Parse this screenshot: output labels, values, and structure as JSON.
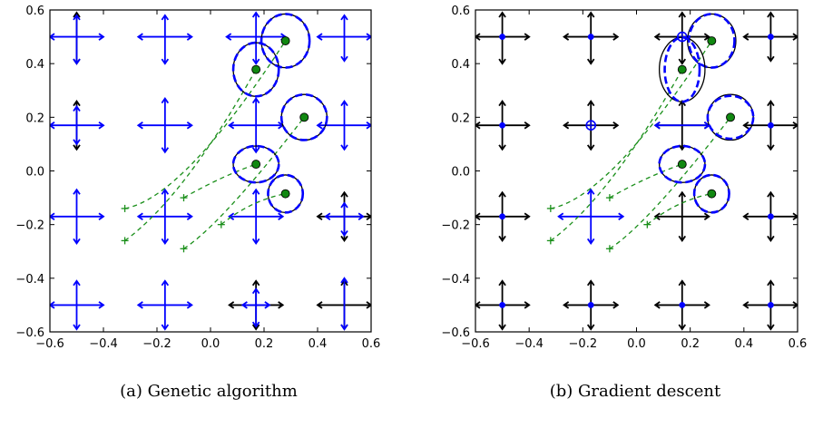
{
  "colors": {
    "blue": "#0000ff",
    "black": "#000000",
    "green": "#118811",
    "green_dash": "#1a8f1a",
    "frame": "#000000"
  },
  "chart_data": [
    {
      "type": "scatter",
      "caption": "(a) Genetic algorithm",
      "xlim": [
        -0.6,
        0.6
      ],
      "ylim": [
        -0.6,
        0.6
      ],
      "xticks": [
        -0.6,
        -0.4,
        -0.2,
        0.0,
        0.2,
        0.4,
        0.6
      ],
      "yticks": [
        -0.6,
        -0.4,
        -0.2,
        0.0,
        0.2,
        0.4,
        0.6
      ],
      "xtick_labels": [
        "−0.6",
        "−0.4",
        "−0.2",
        "0.0",
        "0.2",
        "0.4",
        "0.6"
      ],
      "ytick_labels": [
        "−0.6",
        "−0.4",
        "−0.2",
        "0.0",
        "0.2",
        "0.4",
        "0.6"
      ],
      "grid": false,
      "crosses": [
        {
          "x": -0.5,
          "y": 0.5,
          "color": "blue",
          "h": 0.1,
          "up": 0.08,
          "down": 0.1,
          "dot": false
        },
        {
          "x": -0.5,
          "y": 0.5,
          "color": "black",
          "h": 0.0,
          "up": 0.09,
          "down": 0.1,
          "dot": false,
          "behind": true
        },
        {
          "x": -0.17,
          "y": 0.5,
          "color": "blue",
          "h": 0.1,
          "up": 0.08,
          "down": 0.1,
          "dot": false
        },
        {
          "x": 0.17,
          "y": 0.5,
          "color": "blue",
          "h": 0.11,
          "up": 0.09,
          "down": 0.1,
          "dot": false
        },
        {
          "x": 0.5,
          "y": 0.5,
          "color": "blue",
          "h": 0.1,
          "up": 0.08,
          "down": 0.09,
          "dot": false
        },
        {
          "x": -0.5,
          "y": 0.17,
          "color": "blue",
          "h": 0.1,
          "up": 0.07,
          "down": 0.07,
          "dot": false
        },
        {
          "x": -0.5,
          "y": 0.17,
          "color": "black",
          "h": 0.0,
          "up": 0.09,
          "down": 0.09,
          "dot": false,
          "behind": true
        },
        {
          "x": -0.17,
          "y": 0.17,
          "color": "blue",
          "h": 0.1,
          "up": 0.1,
          "down": 0.1,
          "dot": false
        },
        {
          "x": 0.17,
          "y": 0.17,
          "color": "blue",
          "h": 0.1,
          "up": 0.1,
          "down": 0.1,
          "dot": false
        },
        {
          "x": 0.5,
          "y": 0.17,
          "color": "blue",
          "h": 0.1,
          "up": 0.09,
          "down": 0.09,
          "dot": false
        },
        {
          "x": -0.5,
          "y": -0.17,
          "color": "blue",
          "h": 0.1,
          "up": 0.1,
          "down": 0.1,
          "dot": false
        },
        {
          "x": -0.17,
          "y": -0.17,
          "color": "blue",
          "h": 0.1,
          "up": 0.1,
          "down": 0.1,
          "dot": false
        },
        {
          "x": 0.17,
          "y": -0.17,
          "color": "blue",
          "h": 0.1,
          "up": 0.1,
          "down": 0.1,
          "dot": false
        },
        {
          "x": 0.5,
          "y": -0.17,
          "color": "black",
          "h": 0.1,
          "up": 0.09,
          "down": 0.09,
          "dot": false
        },
        {
          "x": 0.5,
          "y": -0.17,
          "color": "blue",
          "h": 0.07,
          "up": 0.05,
          "down": 0.07,
          "dot": false
        },
        {
          "x": -0.5,
          "y": -0.5,
          "color": "blue",
          "h": 0.1,
          "up": 0.09,
          "down": 0.09,
          "dot": false
        },
        {
          "x": -0.17,
          "y": -0.5,
          "color": "blue",
          "h": 0.1,
          "up": 0.09,
          "down": 0.09,
          "dot": false
        },
        {
          "x": 0.17,
          "y": -0.5,
          "color": "black",
          "h": 0.1,
          "up": 0.09,
          "down": 0.09,
          "dot": false
        },
        {
          "x": 0.17,
          "y": -0.5,
          "color": "blue",
          "h": 0.05,
          "up": 0.06,
          "down": 0.08,
          "dot": false
        },
        {
          "x": 0.5,
          "y": -0.5,
          "color": "black",
          "h": 0.1,
          "up": 0.09,
          "down": 0.09,
          "dot": false
        },
        {
          "x": 0.5,
          "y": -0.5,
          "color": "blue",
          "h": 0.0,
          "up": 0.1,
          "down": 0.09,
          "dot": false
        }
      ],
      "ellipses": [
        {
          "x": 0.28,
          "y": 0.485,
          "rx": 0.09,
          "ry": 0.1,
          "blue_rx": 0.09,
          "blue_ry": 0.1
        },
        {
          "x": 0.17,
          "y": 0.378,
          "rx": 0.085,
          "ry": 0.1,
          "blue_rx": 0.085,
          "blue_ry": 0.1
        },
        {
          "x": 0.35,
          "y": 0.2,
          "rx": 0.085,
          "ry": 0.085,
          "blue_rx": 0.085,
          "blue_ry": 0.085
        },
        {
          "x": 0.17,
          "y": 0.025,
          "rx": 0.085,
          "ry": 0.068,
          "blue_rx": 0.085,
          "blue_ry": 0.068
        },
        {
          "x": 0.28,
          "y": -0.085,
          "rx": 0.065,
          "ry": 0.07,
          "blue_rx": 0.065,
          "blue_ry": 0.07
        }
      ],
      "trajectories": [
        {
          "start": [
            -0.32,
            -0.14
          ],
          "mid": [
            -0.1,
            -0.1
          ],
          "end": [
            0.28,
            0.485
          ]
        },
        {
          "start": [
            -0.32,
            -0.26
          ],
          "mid": [
            -0.1,
            -0.1
          ],
          "end": [
            0.17,
            0.378
          ]
        },
        {
          "start": [
            -0.1,
            -0.29
          ],
          "mid": [
            0.04,
            -0.2
          ],
          "end": [
            0.35,
            0.2
          ]
        },
        {
          "start": [
            -0.1,
            -0.1
          ],
          "mid": [
            0.04,
            -0.02
          ],
          "end": [
            0.17,
            0.025
          ]
        },
        {
          "start": [
            0.04,
            -0.2
          ],
          "mid": [
            0.15,
            -0.11
          ],
          "end": [
            0.28,
            -0.085
          ]
        }
      ]
    },
    {
      "type": "scatter",
      "caption": "(b) Gradient descent",
      "xlim": [
        -0.6,
        0.6
      ],
      "ylim": [
        -0.6,
        0.6
      ],
      "xticks": [
        -0.6,
        -0.4,
        -0.2,
        0.0,
        0.2,
        0.4,
        0.6
      ],
      "yticks": [
        -0.6,
        -0.4,
        -0.2,
        0.0,
        0.2,
        0.4,
        0.6
      ],
      "xtick_labels": [
        "−0.6",
        "−0.4",
        "−0.2",
        "0.0",
        "0.2",
        "0.4",
        "0.6"
      ],
      "ytick_labels": [
        "−0.6",
        "−0.4",
        "−0.2",
        "0.0",
        "0.2",
        "0.4",
        "0.6"
      ],
      "grid": false,
      "crosses": [
        {
          "x": -0.5,
          "y": 0.5,
          "color": "black",
          "h": 0.1,
          "up": 0.09,
          "down": 0.1,
          "dot": true
        },
        {
          "x": -0.17,
          "y": 0.5,
          "color": "black",
          "h": 0.1,
          "up": 0.09,
          "down": 0.1,
          "dot": true
        },
        {
          "x": 0.17,
          "y": 0.5,
          "color": "black",
          "h": 0.1,
          "up": 0.09,
          "down": 0.1,
          "dot": false
        },
        {
          "x": 0.17,
          "y": 0.5,
          "color": "blue",
          "h": 0.0,
          "up": 0.0,
          "down": 0.0,
          "dot": true,
          "hollow": true
        },
        {
          "x": 0.5,
          "y": 0.5,
          "color": "black",
          "h": 0.1,
          "up": 0.09,
          "down": 0.09,
          "dot": true
        },
        {
          "x": -0.5,
          "y": 0.17,
          "color": "black",
          "h": 0.1,
          "up": 0.09,
          "down": 0.09,
          "dot": true
        },
        {
          "x": -0.17,
          "y": 0.17,
          "color": "black",
          "h": 0.1,
          "up": 0.09,
          "down": 0.09,
          "dot": false
        },
        {
          "x": -0.17,
          "y": 0.17,
          "color": "blue",
          "h": 0.0,
          "up": 0.0,
          "down": 0.0,
          "dot": true,
          "hollow": true
        },
        {
          "x": 0.17,
          "y": 0.17,
          "color": "black",
          "h": 0.1,
          "up": 0.09,
          "down": 0.09,
          "dot": false
        },
        {
          "x": 0.17,
          "y": 0.17,
          "color": "blue",
          "h": 0.1,
          "up": 0.0,
          "down": 0.0,
          "dot": false
        },
        {
          "x": 0.5,
          "y": 0.17,
          "color": "black",
          "h": 0.1,
          "up": 0.09,
          "down": 0.09,
          "dot": true
        },
        {
          "x": -0.5,
          "y": -0.17,
          "color": "black",
          "h": 0.1,
          "up": 0.09,
          "down": 0.09,
          "dot": true
        },
        {
          "x": -0.17,
          "y": -0.17,
          "color": "blue",
          "h": 0.12,
          "up": 0.1,
          "down": 0.1,
          "dot": false
        },
        {
          "x": 0.17,
          "y": -0.17,
          "color": "black",
          "h": 0.1,
          "up": 0.09,
          "down": 0.09,
          "dot": false
        },
        {
          "x": 0.17,
          "y": -0.17,
          "color": "blue",
          "h": 0.0,
          "up": 0.0,
          "down": 0.0,
          "dot": false
        },
        {
          "x": 0.5,
          "y": -0.17,
          "color": "black",
          "h": 0.1,
          "up": 0.09,
          "down": 0.09,
          "dot": true
        },
        {
          "x": -0.5,
          "y": -0.5,
          "color": "black",
          "h": 0.1,
          "up": 0.09,
          "down": 0.09,
          "dot": true
        },
        {
          "x": -0.17,
          "y": -0.5,
          "color": "black",
          "h": 0.1,
          "up": 0.09,
          "down": 0.09,
          "dot": true
        },
        {
          "x": 0.17,
          "y": -0.5,
          "color": "black",
          "h": 0.1,
          "up": 0.09,
          "down": 0.09,
          "dot": true
        },
        {
          "x": 0.5,
          "y": -0.5,
          "color": "black",
          "h": 0.1,
          "up": 0.09,
          "down": 0.09,
          "dot": true
        }
      ],
      "ellipses": [
        {
          "x": 0.28,
          "y": 0.485,
          "rx": 0.09,
          "ry": 0.1,
          "blue_rx": 0.085,
          "blue_ry": 0.1
        },
        {
          "x": 0.17,
          "y": 0.378,
          "rx": 0.085,
          "ry": 0.12,
          "blue_rx": 0.065,
          "blue_ry": 0.12
        },
        {
          "x": 0.35,
          "y": 0.2,
          "rx": 0.085,
          "ry": 0.085,
          "blue_rx": 0.085,
          "blue_ry": 0.08
        },
        {
          "x": 0.17,
          "y": 0.025,
          "rx": 0.085,
          "ry": 0.068,
          "blue_rx": 0.085,
          "blue_ry": 0.068
        },
        {
          "x": 0.28,
          "y": -0.085,
          "rx": 0.065,
          "ry": 0.07,
          "blue_rx": 0.065,
          "blue_ry": 0.07
        }
      ],
      "trajectories": [
        {
          "start": [
            -0.32,
            -0.14
          ],
          "mid": [
            -0.1,
            -0.1
          ],
          "end": [
            0.28,
            0.485
          ]
        },
        {
          "start": [
            -0.32,
            -0.26
          ],
          "mid": [
            -0.1,
            -0.1
          ],
          "end": [
            0.17,
            0.378
          ]
        },
        {
          "start": [
            -0.1,
            -0.29
          ],
          "mid": [
            0.04,
            -0.2
          ],
          "end": [
            0.35,
            0.2
          ]
        },
        {
          "start": [
            -0.1,
            -0.1
          ],
          "mid": [
            0.04,
            -0.02
          ],
          "end": [
            0.17,
            0.025
          ]
        },
        {
          "start": [
            0.04,
            -0.2
          ],
          "mid": [
            0.15,
            -0.11
          ],
          "end": [
            0.28,
            -0.085
          ]
        }
      ]
    }
  ]
}
